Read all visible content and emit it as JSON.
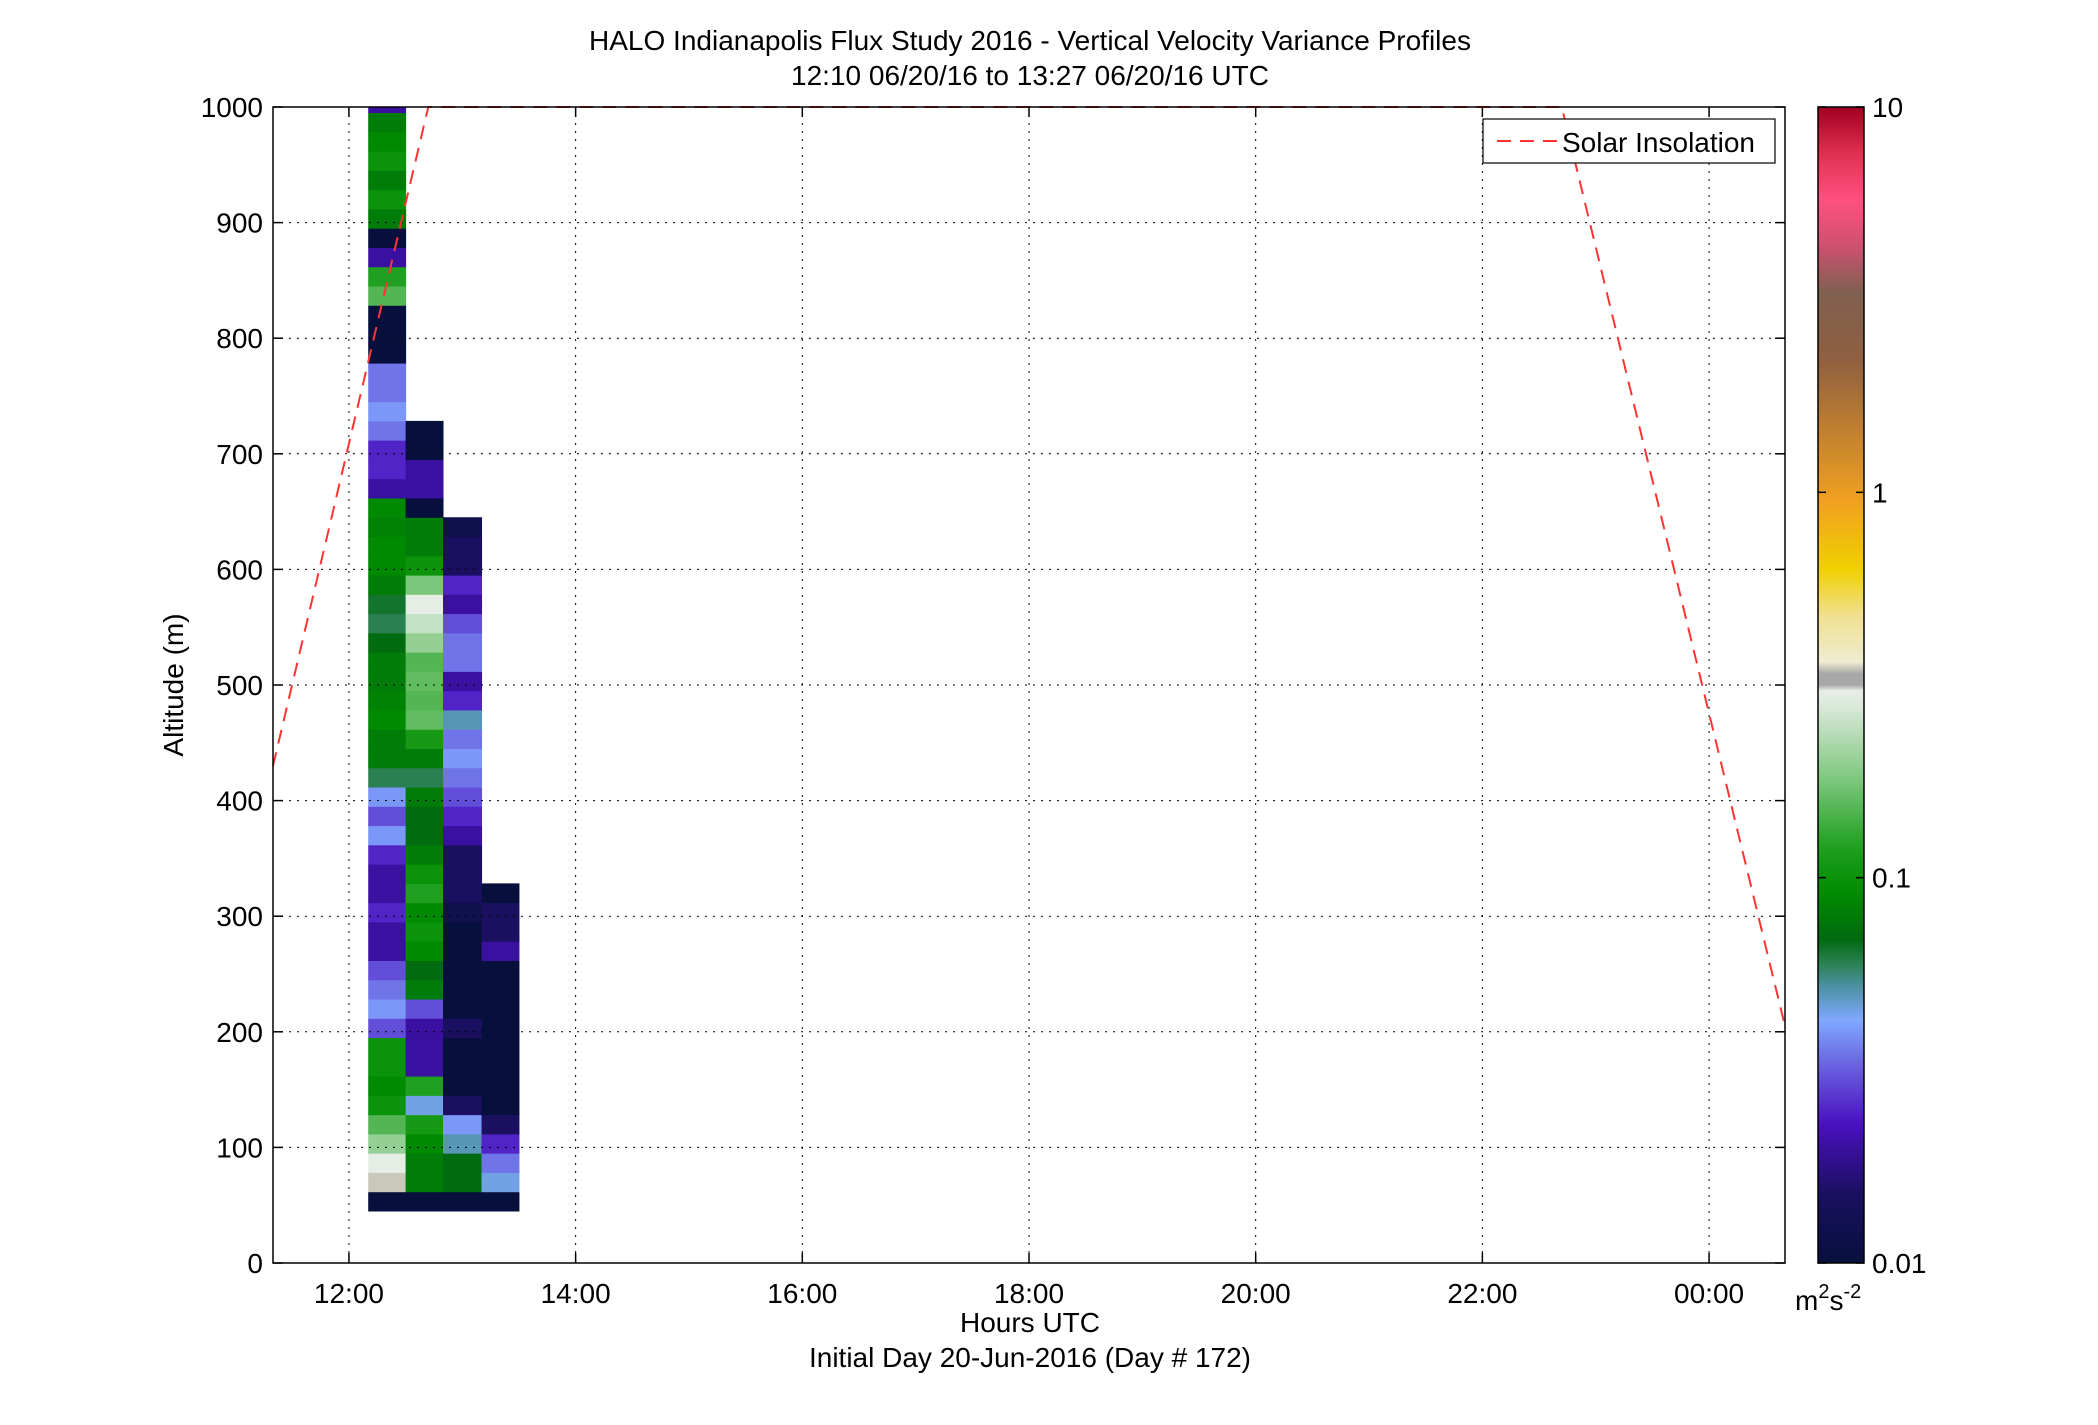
{
  "chart_data": {
    "type": "heatmap",
    "title": "HALO Indianapolis Flux Study 2016 - Vertical Velocity Variance Profiles",
    "subtitle": "12:10 06/20/16 to 13:27 06/20/16  UTC",
    "xlabel": "Hours UTC",
    "xlabel2": "Initial Day 20-Jun-2016 (Day # 172)",
    "ylabel": "Altitude (m)",
    "xlim": [
      11.33,
      24.67
    ],
    "ylim": [
      0,
      1000
    ],
    "grid": true,
    "x_ticks": [
      {
        "value": 12,
        "label": "12:00"
      },
      {
        "value": 14,
        "label": "14:00"
      },
      {
        "value": 16,
        "label": "16:00"
      },
      {
        "value": 18,
        "label": "18:00"
      },
      {
        "value": 20,
        "label": "20:00"
      },
      {
        "value": 22,
        "label": "22:00"
      },
      {
        "value": 24,
        "label": "00:00"
      }
    ],
    "y_ticks": [
      {
        "value": 0,
        "label": "0"
      },
      {
        "value": 100,
        "label": "100"
      },
      {
        "value": 200,
        "label": "200"
      },
      {
        "value": 300,
        "label": "300"
      },
      {
        "value": 400,
        "label": "400"
      },
      {
        "value": 500,
        "label": "500"
      },
      {
        "value": 600,
        "label": "600"
      },
      {
        "value": 700,
        "label": "700"
      },
      {
        "value": 800,
        "label": "800"
      },
      {
        "value": 900,
        "label": "900"
      },
      {
        "value": 1000,
        "label": "1000"
      }
    ],
    "legend": {
      "position": "top-right",
      "entries": [
        {
          "name": "Solar Insolation",
          "style": "dashed",
          "color": "#ff3333"
        }
      ]
    },
    "colorbar": {
      "scale": "log",
      "range": [
        0.01,
        10
      ],
      "ticks": [
        {
          "value": 0.01,
          "label": "0.01"
        },
        {
          "value": 0.1,
          "label": "0.1"
        },
        {
          "value": 1,
          "label": "1"
        },
        {
          "value": 10,
          "label": "10"
        }
      ],
      "units_base": "m",
      "units_sup1": "2",
      "units_mid": "s",
      "units_sup2": "-2"
    },
    "heatmap": {
      "x_centers": [
        12.33,
        12.67,
        13.0,
        13.33
      ],
      "x_width": 0.333,
      "y_start": 45,
      "y_step": 16.67,
      "columns": [
        {
          "start": 12.17,
          "end": 12.5,
          "values": [
            0.01,
            0.35,
            0.3,
            0.2,
            0.15,
            0.1,
            0.09,
            0.1,
            0.1,
            0.03,
            0.04,
            0.035,
            0.03,
            0.02,
            0.02,
            0.025,
            0.02,
            0.02,
            0.025,
            0.04,
            0.03,
            0.04,
            0.06,
            0.08,
            0.08,
            0.09,
            0.085,
            0.08,
            0.08,
            0.07,
            0.06,
            0.065,
            0.08,
            0.09,
            0.09,
            0.085,
            0.09,
            0.02,
            0.025,
            0.025,
            0.035,
            0.04,
            0.035,
            0.035,
            0.01,
            0.01,
            0.01,
            0.15,
            0.12,
            0.02,
            0.01,
            0.08,
            0.1,
            0.08,
            0.1,
            0.09,
            0.08,
            0.02,
            0.05
          ]
        },
        {
          "start": 12.5,
          "end": 12.83,
          "values": [
            0.01,
            0.08,
            0.08,
            0.09,
            0.11,
            0.045,
            0.12,
            0.02,
            0.02,
            0.02,
            0.03,
            0.08,
            0.07,
            0.09,
            0.1,
            0.09,
            0.12,
            0.1,
            0.08,
            0.07,
            0.07,
            0.08,
            0.06,
            0.08,
            0.11,
            0.16,
            0.15,
            0.16,
            0.15,
            0.2,
            0.25,
            0.3,
            0.18,
            0.1,
            0.08,
            0.08,
            0.01,
            0.02,
            0.02,
            0.01,
            0.01
          ]
        },
        {
          "start": 12.83,
          "end": 13.17,
          "values": [
            0.01,
            0.07,
            0.07,
            0.05,
            0.04,
            0.015,
            0.01,
            0.01,
            0.01,
            0.015,
            0.01,
            0.01,
            0.01,
            0.01,
            0.01,
            0.012,
            0.015,
            0.015,
            0.015,
            0.02,
            0.025,
            0.03,
            0.035,
            0.04,
            0.035,
            0.05,
            0.025,
            0.02,
            0.035,
            0.035,
            0.03,
            0.02,
            0.025,
            0.015,
            0.015,
            0.012
          ]
        },
        {
          "start": 13.17,
          "end": 13.5,
          "values": [
            0.01,
            0.045,
            0.035,
            0.025,
            0.015,
            0.01,
            0.01,
            0.01,
            0.01,
            0.01,
            0.01,
            0.01,
            0.01,
            0.02,
            0.015,
            0.015,
            0.01
          ]
        }
      ]
    },
    "series": [
      {
        "name": "Solar Insolation",
        "x": [
          11.33,
          12.7,
          22.7,
          24.67
        ],
        "y": [
          430,
          1000,
          1000,
          205
        ]
      }
    ]
  }
}
